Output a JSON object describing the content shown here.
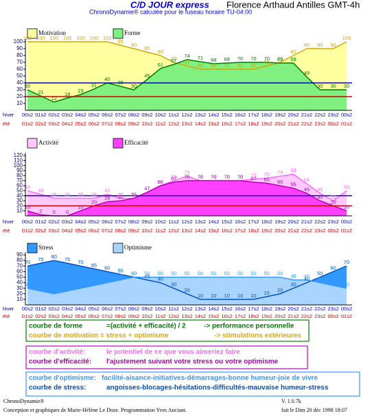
{
  "header": {
    "title": "C/D JOUR express",
    "subject": "Florence Arthaud Antilles GMT-4h",
    "subtitle": "ChronoDynamie® calculée pour le fuseau horaire TU-04:00"
  },
  "chart_data": [
    {
      "type": "area",
      "x_label": "hiver",
      "x2_label": "été",
      "categories": [
        "00s2",
        "01s2",
        "02s2",
        "03s2",
        "04s2",
        "05s2",
        "06s2",
        "07s2",
        "08s2",
        "09s2",
        "10s2",
        "11s2",
        "12s2",
        "13s2",
        "14s2",
        "15s2",
        "16s2",
        "17s2",
        "18s2",
        "19s2",
        "20s2",
        "21s2",
        "22s2",
        "23s2",
        "00s2"
      ],
      "categories2": [
        "01s2",
        "02s2",
        "03s2",
        "04s2",
        "05s2",
        "06s2",
        "07s2",
        "08s2",
        "09s2",
        "10s2",
        "11s2",
        "12s2",
        "13s2",
        "14s2",
        "15s2",
        "16s2",
        "17s2",
        "18s2",
        "19s2",
        "20s2",
        "21s2",
        "22s2",
        "23s2",
        "00s2",
        "01s2"
      ],
      "ylim": [
        0,
        100
      ],
      "yticks": [
        10,
        20,
        30,
        40,
        50,
        60,
        70,
        80,
        90,
        100
      ],
      "hlines": [
        {
          "value": 40,
          "color": "#0000cc"
        },
        {
          "value": 20,
          "color": "#cc0000"
        }
      ],
      "series": [
        {
          "name": "Motivation",
          "color": "#d4a800",
          "fill": "#ffffa0",
          "values": [
            100,
            100,
            100,
            100,
            100,
            100,
            100,
            95,
            90,
            85,
            80,
            70,
            65,
            60,
            60,
            60,
            60,
            60,
            65,
            70,
            80,
            90,
            90,
            90,
            100
          ]
        },
        {
          "name": "Forme",
          "color": "#007a00",
          "fill": "#80f080",
          "values": [
            30,
            21,
            12,
            18,
            23,
            31,
            40,
            35,
            30,
            45,
            61,
            67,
            74,
            71,
            68,
            69,
            70,
            70,
            70,
            69,
            69,
            49,
            30,
            30,
            30
          ]
        }
      ]
    },
    {
      "type": "area",
      "x_label": "hiver",
      "x2_label": "été",
      "categories": [
        "00s2",
        "01s2",
        "02s2",
        "03s2",
        "04s2",
        "05s2",
        "06s2",
        "07s2",
        "08s2",
        "09s2",
        "10s2",
        "11s2",
        "12s2",
        "13s2",
        "14s2",
        "15s2",
        "16s2",
        "17s2",
        "18s2",
        "19s2",
        "20s2",
        "21s2",
        "22s2",
        "23s2",
        "00s2"
      ],
      "categories2": [
        "01s2",
        "02s2",
        "03s2",
        "04s2",
        "05s2",
        "06s2",
        "07s2",
        "08s2",
        "09s2",
        "10s2",
        "11s2",
        "12s2",
        "13s2",
        "14s2",
        "15s2",
        "16s2",
        "17s2",
        "18s2",
        "19s2",
        "20s2",
        "21s2",
        "22s2",
        "23s2",
        "00s2",
        "01s2"
      ],
      "ylim": [
        0,
        120
      ],
      "yticks": [
        10,
        20,
        30,
        40,
        50,
        60,
        70,
        80,
        90,
        100,
        110,
        120
      ],
      "hlines": [
        {
          "value": 40,
          "color": "#0000cc"
        },
        {
          "value": 20,
          "color": "#cc0000"
        }
      ],
      "series": [
        {
          "name": "Activité",
          "color": "#ff66ff",
          "fill": "#ffc8ff",
          "values": [
            50,
            43,
            35,
            35,
            35,
            35,
            43,
            35,
            35,
            47,
            60,
            70,
            79,
            70,
            70,
            70,
            70,
            73,
            75,
            79,
            83,
            64,
            45,
            30,
            50
          ]
        },
        {
          "name": "Efficacité",
          "color": "#b000b0",
          "fill": "#ff40ff",
          "values": [
            10,
            2,
            0,
            0,
            10,
            20,
            28,
            30,
            35,
            47,
            60,
            67,
            70,
            70,
            70,
            70,
            70,
            67,
            65,
            60,
            55,
            45,
            30,
            20,
            10
          ]
        }
      ]
    },
    {
      "type": "area",
      "x_label": "hiver",
      "x2_label": "été",
      "categories": [
        "00s2",
        "01s2",
        "02s2",
        "03s2",
        "04s2",
        "05s2",
        "06s2",
        "07s2",
        "08s2",
        "09s2",
        "10s2",
        "11s2",
        "12s2",
        "13s2",
        "14s2",
        "15s2",
        "16s2",
        "17s2",
        "18s2",
        "19s2",
        "20s2",
        "21s2",
        "22s2",
        "23s2",
        "00s2"
      ],
      "categories2": [
        "01s2",
        "02s2",
        "03s2",
        "04s2",
        "05s2",
        "06s2",
        "07s2",
        "08s2",
        "09s2",
        "10s2",
        "11s2",
        "12s2",
        "13s2",
        "14s2",
        "15s2",
        "16s2",
        "17s2",
        "18s2",
        "19s2",
        "20s2",
        "21s2",
        "22s2",
        "23s2",
        "00s2",
        "01s2"
      ],
      "ylim": [
        0,
        90
      ],
      "yticks": [
        10,
        20,
        30,
        40,
        50,
        60,
        70,
        80,
        90
      ],
      "hlines": [],
      "series": [
        {
          "name": "Stress",
          "color": "#0050c0",
          "fill": "#3399ff",
          "values": [
            70,
            75,
            80,
            75,
            70,
            65,
            60,
            55,
            50,
            45,
            40,
            30,
            20,
            10,
            10,
            10,
            10,
            10,
            15,
            20,
            30,
            40,
            50,
            60,
            70
          ]
        },
        {
          "name": "Optimisme",
          "color": "#3399ff",
          "fill": "#a8d4ff",
          "values": [
            30,
            25,
            20,
            25,
            30,
            35,
            40,
            45,
            50,
            50,
            50,
            50,
            50,
            50,
            50,
            50,
            50,
            50,
            50,
            50,
            45,
            45,
            40,
            35,
            30
          ]
        }
      ]
    }
  ],
  "notes": [
    {
      "border": "#008000",
      "lines": [
        {
          "color": "#008000",
          "parts": [
            "courbe de forme",
            "=(activité + efficacité) / 2",
            "-> performance personnelle"
          ]
        },
        {
          "color": "#e0a800",
          "parts": [
            "courbe de motivation = stress + optimisme",
            "-> stimulations extérieures"
          ]
        }
      ]
    },
    {
      "border": "#cc00cc",
      "lines": [
        {
          "color": "#ff66ff",
          "parts": [
            "courbe d'activité:",
            "le potentiel de ce que vous aimeriez faire"
          ]
        },
        {
          "color": "#b000b0",
          "parts": [
            "courbe d'efficacité:",
            "l'ajustement suivant votre stress ou votre optimisme"
          ]
        }
      ]
    },
    {
      "border": "#3399ff",
      "lines": [
        {
          "color": "#3399ff",
          "parts": [
            "courbe d'optimisme:",
            "facilité-aisance-initiatives-démarrages-bonne humeur-joie de vivre"
          ]
        },
        {
          "color": "#0050c0",
          "parts": [
            "courbe de stress:",
            "angoisses-blocages-hésitations-difficultés-mauvaise humeur-stress"
          ]
        }
      ]
    }
  ],
  "footer": {
    "brand": "ChronoDynamie®",
    "credits": "Conception et graphiques de Marie-Hélène Le Doze. Programmation Yves Anciant.",
    "version": "V. 1.0.7k",
    "date": "fait le Dim 20 déc 1998 18:07"
  }
}
